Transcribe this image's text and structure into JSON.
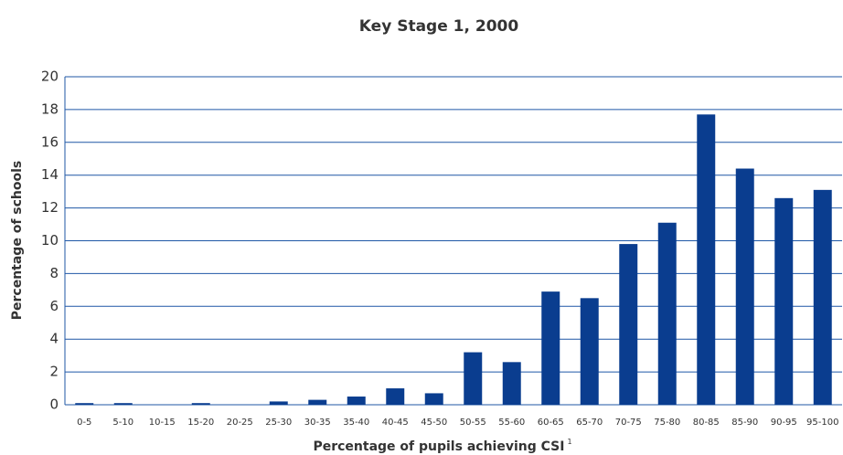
{
  "chart_data": {
    "type": "bar",
    "title": "Key Stage 1, 2000",
    "x_label": "Percentage of pupils achieving CSI",
    "x_label_note": "1",
    "y_label": "Percentage of schools",
    "categories": [
      "0-5",
      "5-10",
      "10-15",
      "15-20",
      "20-25",
      "25-30",
      "30-35",
      "35-40",
      "40-45",
      "45-50",
      "50-55",
      "55-60",
      "60-65",
      "65-70",
      "70-75",
      "75-80",
      "80-85",
      "85-90",
      "90-95",
      "95-100"
    ],
    "values": [
      0.1,
      0.1,
      0,
      0.1,
      0,
      0.2,
      0.3,
      0.5,
      1.0,
      0.7,
      3.2,
      2.6,
      6.9,
      6.5,
      9.8,
      11.1,
      17.7,
      14.4,
      12.6,
      13.1
    ],
    "color": "#0a3d8f",
    "grid_color": "#1f57a6",
    "ylim": [
      0,
      20
    ],
    "yticks": [
      0,
      2,
      4,
      6,
      8,
      10,
      12,
      14,
      16,
      18,
      20
    ],
    "grid": true
  }
}
